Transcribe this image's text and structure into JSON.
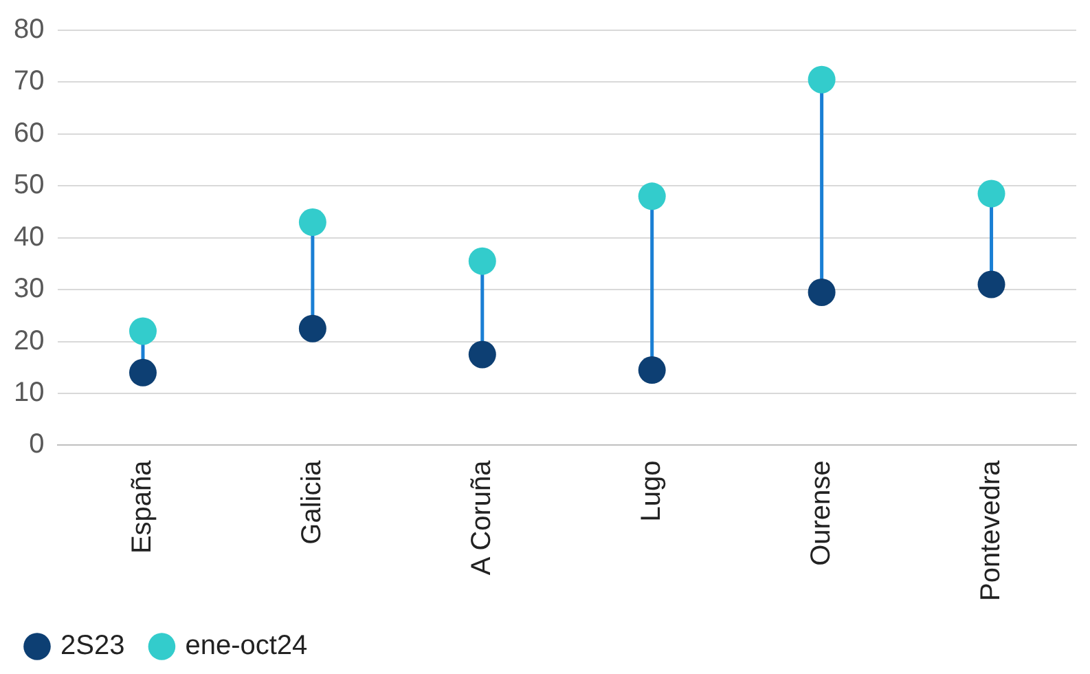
{
  "chart_data": {
    "type": "scatter",
    "categories": [
      "España",
      "Galicia",
      "A Coruña",
      "Lugo",
      "Ourense",
      "Pontevedra"
    ],
    "series": [
      {
        "name": "2S23",
        "color": "#0d3f73",
        "values": [
          14,
          22.5,
          17.5,
          14.5,
          29.5,
          31
        ]
      },
      {
        "name": "ene-oct24",
        "color": "#33cccc",
        "values": [
          22,
          43,
          35.5,
          48,
          70.5,
          48.5
        ]
      }
    ],
    "ylim": [
      0,
      80
    ],
    "yticks": [
      0,
      10,
      20,
      30,
      40,
      50,
      60,
      70,
      80
    ],
    "grid": "y",
    "legend": "bottom left",
    "marker": "circle"
  }
}
